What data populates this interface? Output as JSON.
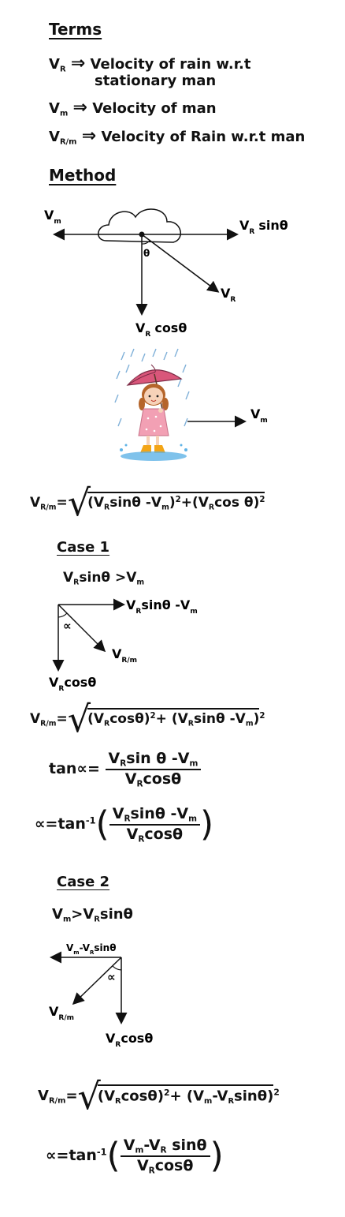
{
  "terms": {
    "heading": "Terms",
    "items": [
      {
        "symbol": "V",
        "sub": "R",
        "arrow": "⇒",
        "text": "Velocity of rain w.r.t",
        "text2": "stationary man"
      },
      {
        "symbol": "V",
        "sub": "m",
        "arrow": "⇒",
        "text": "Velocity of man"
      },
      {
        "symbol": "V",
        "sub": "R/m",
        "arrow": "⇒",
        "text": "Velocity of Rain w.r.t man"
      }
    ]
  },
  "method": {
    "heading": "Method",
    "labels": {
      "vm_left": "V",
      "vm_left_sub": "m",
      "vr_sin": "V",
      "vr_sin_sub": "R",
      "vr_sin_tail": "sinθ",
      "theta": "θ",
      "vr": "V",
      "vr_sub": "R",
      "vr_cos": "V",
      "vr_cos_sub": "R",
      "vr_cos_tail": "cosθ",
      "vm_girl": "V",
      "vm_girl_sub": "m"
    },
    "formula": {
      "lhs": "V",
      "lhs_sub": "R/m",
      "eq": "=",
      "term1": "(V",
      "term1_sub": "R",
      "term1_tail": "sinθ -V",
      "term1_sub2": "m",
      "term1_close": ")",
      "plus": "+",
      "term2": "(V",
      "term2_sub": "R",
      "term2_tail": "cos θ)",
      "sq": "2"
    }
  },
  "case1": {
    "heading": "Case 1",
    "condition": {
      "a": "V",
      "a_sub": "R",
      "a_tail": "sinθ >V",
      "a_sub2": "m"
    },
    "diagram": {
      "right_label": "V",
      "right_sub": "R",
      "right_tail": "sinθ -V",
      "right_sub2": "m",
      "alpha": "∝",
      "diag_label": "V",
      "diag_sub": "R/m",
      "down_label": "V",
      "down_sub": "R",
      "down_tail": "cosθ"
    },
    "formula_mag": {
      "lhs": "V",
      "lhs_sub": "R/m",
      "eq": "=",
      "t1": "(V",
      "t1_sub": "R",
      "t1_tail": "cosθ)",
      "sq": "2",
      "plus": "+",
      "t2": "(V",
      "t2_sub": "R",
      "t2_tail": "sinθ -V",
      "t2_sub2": "m",
      "t2_close": ")"
    },
    "formula_tan": {
      "lhs": "tan∝",
      "eq": "=",
      "num": "V",
      "num_sub": "R",
      "num_tail": "sin θ -V",
      "num_sub2": "m",
      "den": "V",
      "den_sub": "R",
      "den_tail": "cosθ"
    },
    "formula_alpha": {
      "lhs": "∝",
      "eq": "=",
      "fn": "tan",
      "inv": "-1",
      "num": "V",
      "num_sub": "R",
      "num_tail": "sinθ -V",
      "num_sub2": "m",
      "den": "V",
      "den_sub": "R",
      "den_tail": "cosθ"
    }
  },
  "case2": {
    "heading": "Case 2",
    "condition": {
      "a": "V",
      "a_sub": "m",
      "a_tail": ">V",
      "a_sub2": "R",
      "a_tail2": "sinθ"
    },
    "diagram": {
      "top_label": "V",
      "top_sub": "m",
      "top_tail": "-V",
      "top_sub2": "R",
      "top_tail2": "sinθ",
      "alpha": "∝",
      "diag_label": "V",
      "diag_sub": "R/m",
      "down_label": "V",
      "down_sub": "R",
      "down_tail": "cosθ"
    },
    "formula_mag": {
      "lhs": "V",
      "lhs_sub": "R/m",
      "eq": "=",
      "t1": "(V",
      "t1_sub": "R",
      "t1_tail": "cosθ)",
      "sq": "2",
      "plus": "+",
      "t2": "(V",
      "t2_sub": "m",
      "t2_tail": "-V",
      "t2_sub2": "R",
      "t2_tail2": "sinθ)"
    },
    "formula_alpha": {
      "lhs": "∝",
      "eq": "=",
      "fn": "tan",
      "inv": "-1",
      "num": "V",
      "num_sub": "m",
      "num_tail": "-V",
      "num_sub2": "R",
      "num_tail2": " sinθ",
      "den": "V",
      "den_sub": "R",
      "den_tail": "cosθ"
    }
  }
}
